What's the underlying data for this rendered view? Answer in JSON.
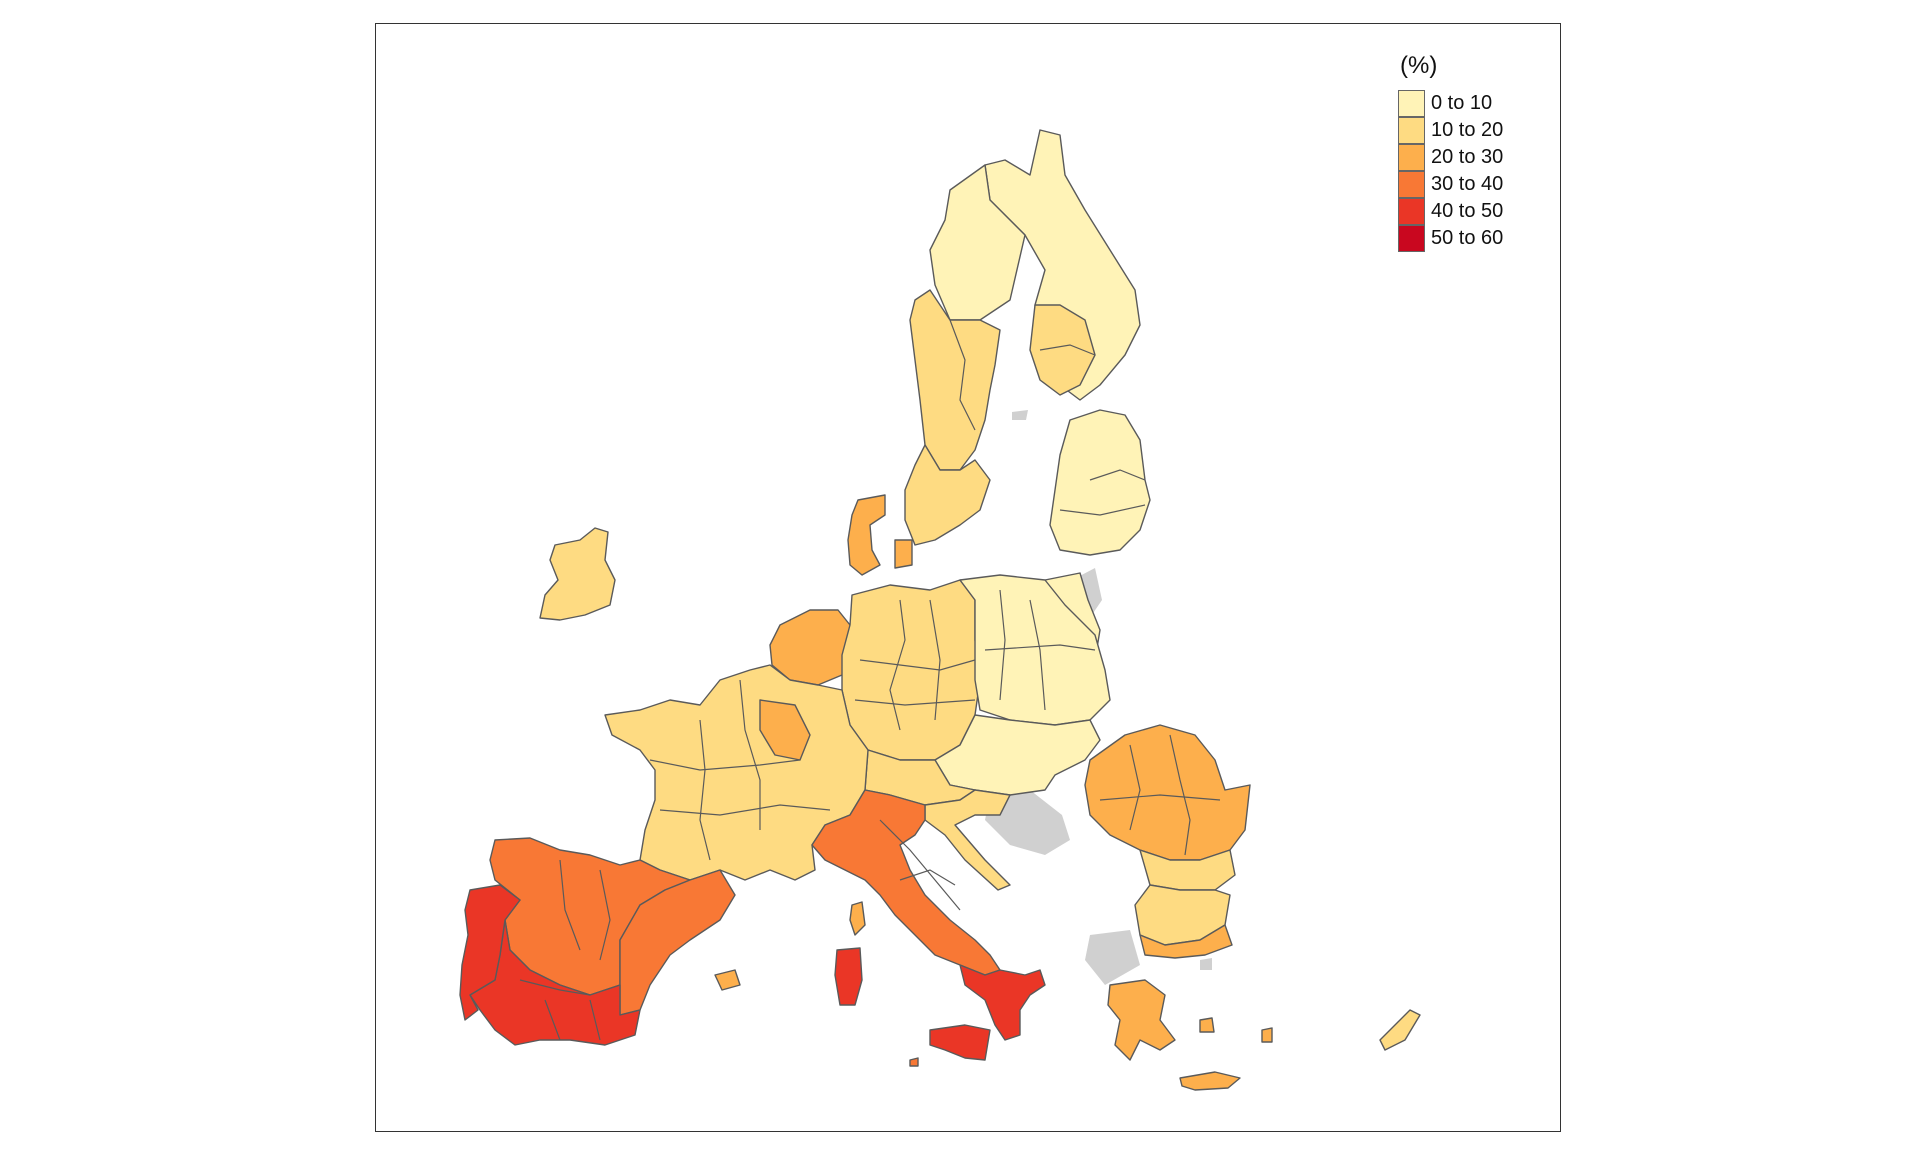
{
  "map": {
    "legend_title": "(%)",
    "classes": [
      {
        "label": "0 to 10",
        "color": "#FFF3B7"
      },
      {
        "label": "10 to 20",
        "color": "#FEDB82"
      },
      {
        "label": "20 to 30",
        "color": "#FDAF4C"
      },
      {
        "label": "30 to 40",
        "color": "#F87835"
      },
      {
        "label": "40 to 50",
        "color": "#EA3626"
      },
      {
        "label": "50 to 60",
        "color": "#C9071F"
      }
    ],
    "no_data_color": "#D0D0D0",
    "region_classes": {
      "scandinavia_north": 0,
      "sweden": 1,
      "finland_south": 0,
      "baltic_states": 0,
      "ireland": 1,
      "denmark": 2,
      "benelux": 2,
      "germany": 1,
      "poland": 0,
      "czechia_slovakia_hungary": 0,
      "austria": 1,
      "slovenia_croatia": 1,
      "france": 1,
      "france_east": 2,
      "romania": 2,
      "romania_south": 1,
      "bulgaria": 1,
      "greece": 2,
      "greece_islands": 2,
      "cyprus": 1,
      "italy_north": 3,
      "italy_south": 4,
      "sicily": 4,
      "sardinia": 4,
      "corsica": 2,
      "spain_north": 3,
      "spain_east": 3,
      "spain_south": 4,
      "portugal": 4,
      "balearic": 2,
      "malta": 3
    }
  }
}
